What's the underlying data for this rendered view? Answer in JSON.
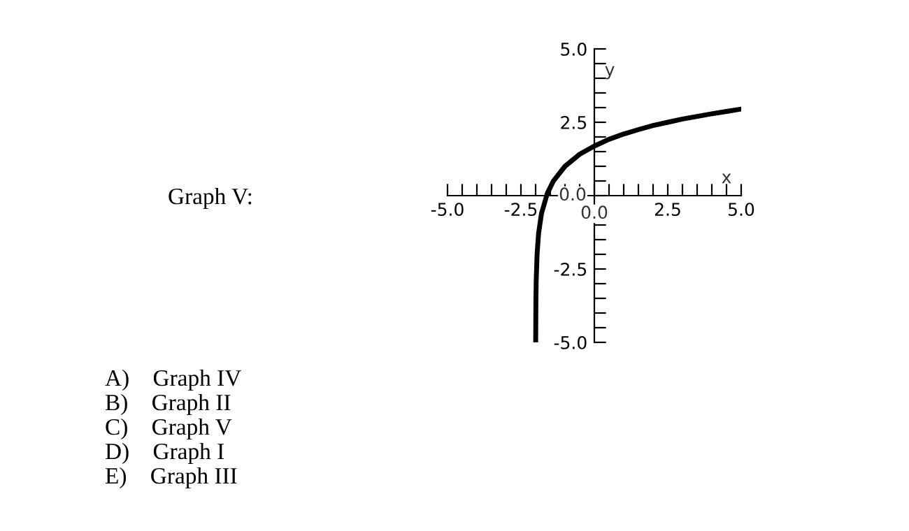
{
  "chart_data": {
    "type": "line",
    "xlabel": "x",
    "ylabel": "y",
    "x": [
      -1.9975,
      -1.99,
      -1.98,
      -1.95,
      -1.9,
      -1.8,
      -1.6,
      -1.4,
      -1.0,
      -0.5,
      0,
      0.5,
      1,
      1.5,
      2,
      2.5,
      3,
      3.5,
      4,
      4.5,
      5
    ],
    "series": [
      {
        "color": "#000000",
        "values": [
          -5.0,
          -3.61,
          -2.91,
          -2.0,
          -1.3,
          -0.61,
          0.08,
          0.49,
          1.0,
          1.41,
          1.69,
          1.92,
          2.1,
          2.25,
          2.39,
          2.5,
          2.61,
          2.7,
          2.79,
          2.87,
          2.95
        ]
      }
    ],
    "xlim": [
      -5,
      5
    ],
    "ylim": [
      -5,
      5
    ],
    "xticks": [
      {
        "value": -5,
        "label": "-5.0"
      },
      {
        "value": -4.5,
        "label": null
      },
      {
        "value": -4,
        "label": null
      },
      {
        "value": -3.5,
        "label": null
      },
      {
        "value": -3,
        "label": null
      },
      {
        "value": -2.5,
        "label": "-2.5"
      },
      {
        "value": -2,
        "label": null
      },
      {
        "value": -1.5,
        "label": null
      },
      {
        "value": -1,
        "label": null
      },
      {
        "value": -0.5,
        "label": null
      },
      {
        "value": 0,
        "label": "0.0"
      },
      {
        "value": 0.5,
        "label": null
      },
      {
        "value": 1,
        "label": null
      },
      {
        "value": 1.5,
        "label": null
      },
      {
        "value": 2,
        "label": null
      },
      {
        "value": 2.5,
        "label": "2.5"
      },
      {
        "value": 3,
        "label": null
      },
      {
        "value": 3.5,
        "label": null
      },
      {
        "value": 4,
        "label": null
      },
      {
        "value": 4.5,
        "label": null
      },
      {
        "value": 5,
        "label": "5.0"
      }
    ],
    "yticks": [
      {
        "value": -5,
        "label": "-5.0"
      },
      {
        "value": -4.5,
        "label": null
      },
      {
        "value": -4,
        "label": null
      },
      {
        "value": -3.5,
        "label": null
      },
      {
        "value": -3,
        "label": null
      },
      {
        "value": -2.5,
        "label": "-2.5"
      },
      {
        "value": -2,
        "label": null
      },
      {
        "value": -1.5,
        "label": null
      },
      {
        "value": -1,
        "label": null
      },
      {
        "value": -0.5,
        "label": null
      },
      {
        "value": 0,
        "label": "0.0"
      },
      {
        "value": 0.5,
        "label": null
      },
      {
        "value": 1,
        "label": null
      },
      {
        "value": 1.5,
        "label": null
      },
      {
        "value": 2,
        "label": null
      },
      {
        "value": 2.5,
        "label": "2.5"
      },
      {
        "value": 3,
        "label": null
      },
      {
        "value": 3.5,
        "label": null
      },
      {
        "value": 4,
        "label": null
      },
      {
        "value": 4.5,
        "label": null
      },
      {
        "value": 5,
        "label": "5.0"
      }
    ],
    "grid": false,
    "legend": false,
    "marker": "none",
    "line_style": "solid",
    "annotations": [
      "Graph V:",
      "A)    Graph IV",
      "B)    Graph II",
      "C)    Graph V",
      "D)    Graph I",
      "E)    Graph III"
    ]
  }
}
